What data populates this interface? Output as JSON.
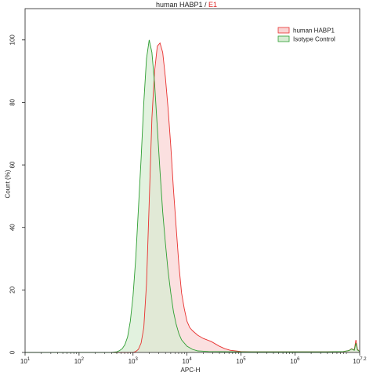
{
  "header": {
    "title_main": "human HABP1 / ",
    "title_accent": "E1"
  },
  "chart_data": {
    "type": "area",
    "x_scale": "log",
    "xlim": [
      1,
      7.2
    ],
    "ylim": [
      0,
      110
    ],
    "xlabel": "APC-H",
    "ylabel": "Count (%)",
    "x_ticks": [
      {
        "exp": 1,
        "label": "10",
        "sup": "1"
      },
      {
        "exp": 2,
        "label": "10",
        "sup": "2"
      },
      {
        "exp": 3,
        "label": "10",
        "sup": "3"
      },
      {
        "exp": 4,
        "label": "10",
        "sup": "4"
      },
      {
        "exp": 5,
        "label": "10",
        "sup": "5"
      },
      {
        "exp": 6,
        "label": "10",
        "sup": "6"
      },
      {
        "exp": 7.2,
        "label": "10",
        "sup": "7.2"
      }
    ],
    "y_ticks": [
      0,
      20,
      40,
      60,
      80,
      100
    ],
    "legend_position": "top-right",
    "series": [
      {
        "name": "human HABP1",
        "stroke": "#e8312f",
        "fill": "#f9d3d3",
        "points": [
          [
            1,
            0
          ],
          [
            3.0,
            0
          ],
          [
            3.05,
            0.3
          ],
          [
            3.1,
            1
          ],
          [
            3.15,
            3
          ],
          [
            3.2,
            8
          ],
          [
            3.25,
            22
          ],
          [
            3.3,
            48
          ],
          [
            3.35,
            75
          ],
          [
            3.4,
            90
          ],
          [
            3.45,
            98
          ],
          [
            3.5,
            99
          ],
          [
            3.55,
            96
          ],
          [
            3.6,
            88
          ],
          [
            3.65,
            78
          ],
          [
            3.7,
            66
          ],
          [
            3.75,
            52
          ],
          [
            3.8,
            40
          ],
          [
            3.85,
            28
          ],
          [
            3.9,
            19
          ],
          [
            3.95,
            14
          ],
          [
            4.0,
            10
          ],
          [
            4.05,
            8
          ],
          [
            4.1,
            7
          ],
          [
            4.2,
            5.5
          ],
          [
            4.3,
            4.5
          ],
          [
            4.45,
            3.5
          ],
          [
            4.55,
            2.5
          ],
          [
            4.6,
            2
          ],
          [
            4.7,
            1.2
          ],
          [
            4.8,
            0.7
          ],
          [
            5.0,
            0.3
          ],
          [
            5.2,
            0.2
          ],
          [
            5.6,
            0.2
          ],
          [
            6.0,
            0.2
          ],
          [
            6.6,
            0.2
          ],
          [
            6.9,
            0.3
          ],
          [
            7.0,
            0.6
          ],
          [
            7.05,
            1.2
          ],
          [
            7.1,
            0.8
          ],
          [
            7.13,
            4
          ],
          [
            7.16,
            1
          ],
          [
            7.2,
            0.3
          ]
        ]
      },
      {
        "name": "Isotype Control",
        "stroke": "#2e9e32",
        "fill": "#d6ecd2",
        "points": [
          [
            1,
            0
          ],
          [
            2.6,
            0
          ],
          [
            2.7,
            0.2
          ],
          [
            2.75,
            0.6
          ],
          [
            2.8,
            1.2
          ],
          [
            2.85,
            2.5
          ],
          [
            2.9,
            5
          ],
          [
            2.95,
            10
          ],
          [
            3.0,
            18
          ],
          [
            3.05,
            30
          ],
          [
            3.1,
            46
          ],
          [
            3.15,
            62
          ],
          [
            3.2,
            80
          ],
          [
            3.25,
            94
          ],
          [
            3.3,
            100
          ],
          [
            3.35,
            96
          ],
          [
            3.4,
            86
          ],
          [
            3.45,
            72
          ],
          [
            3.5,
            58
          ],
          [
            3.55,
            45
          ],
          [
            3.6,
            35
          ],
          [
            3.65,
            26
          ],
          [
            3.7,
            19
          ],
          [
            3.75,
            13
          ],
          [
            3.8,
            9
          ],
          [
            3.85,
            6
          ],
          [
            3.9,
            4
          ],
          [
            4.0,
            2
          ],
          [
            4.1,
            1
          ],
          [
            4.2,
            0.5
          ],
          [
            4.4,
            0.3
          ],
          [
            5.0,
            0.2
          ],
          [
            6.0,
            0.2
          ],
          [
            6.6,
            0.2
          ],
          [
            6.9,
            0.3
          ],
          [
            7.0,
            0.6
          ],
          [
            7.05,
            1.1
          ],
          [
            7.1,
            0.7
          ],
          [
            7.13,
            3
          ],
          [
            7.16,
            0.8
          ],
          [
            7.2,
            0.3
          ]
        ]
      }
    ]
  }
}
